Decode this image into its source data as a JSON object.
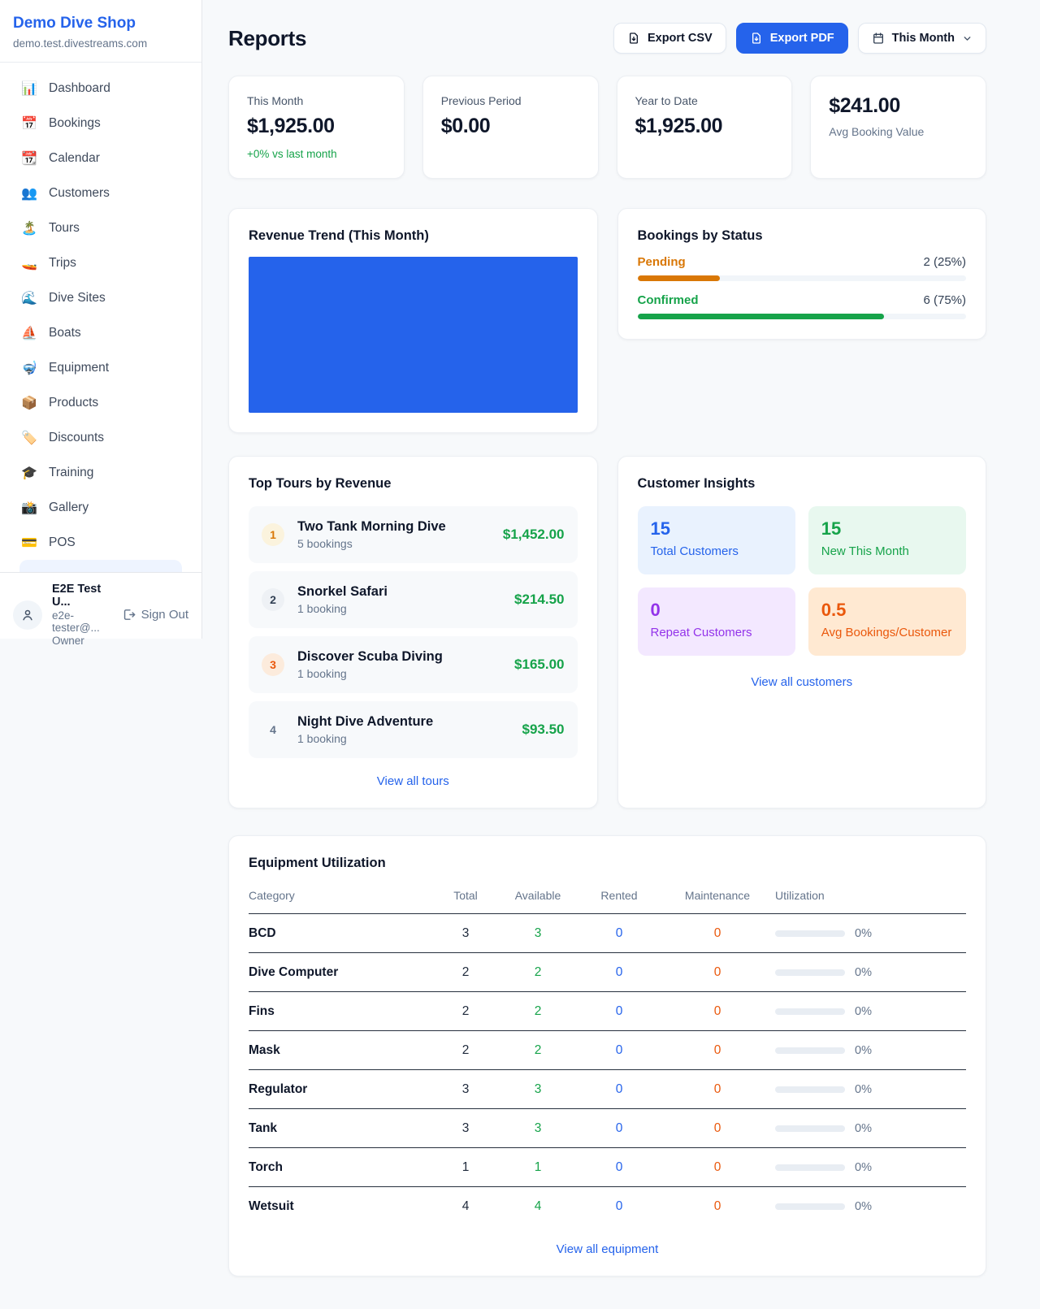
{
  "colors": {
    "accent_blue": "#2563eb",
    "green": "#16a34a",
    "orange_pending": "#d97706",
    "orange_deep": "#ea580c",
    "purple": "#9333ea",
    "page_bg": "#f7f9fb",
    "trend_fill": "#2563eb"
  },
  "sidebar": {
    "brand": "Demo Dive Shop",
    "domain": "demo.test.divestreams.com",
    "items": [
      {
        "icon": "📊",
        "label": "Dashboard"
      },
      {
        "icon": "📅",
        "label": "Bookings"
      },
      {
        "icon": "📆",
        "label": "Calendar"
      },
      {
        "icon": "👥",
        "label": "Customers"
      },
      {
        "icon": "🏝️",
        "label": "Tours"
      },
      {
        "icon": "🚤",
        "label": "Trips"
      },
      {
        "icon": "🌊",
        "label": "Dive Sites"
      },
      {
        "icon": "⛵",
        "label": "Boats"
      },
      {
        "icon": "🤿",
        "label": "Equipment"
      },
      {
        "icon": "📦",
        "label": "Products"
      },
      {
        "icon": "🏷️",
        "label": "Discounts"
      },
      {
        "icon": "🎓",
        "label": "Training"
      },
      {
        "icon": "📸",
        "label": "Gallery"
      },
      {
        "icon": "💳",
        "label": "POS"
      }
    ],
    "user": {
      "name": "E2E Test U...",
      "email": "e2e-tester@...",
      "role": "Owner",
      "sign_out": "Sign Out"
    }
  },
  "header": {
    "title": "Reports",
    "export_csv": "Export CSV",
    "export_pdf": "Export PDF",
    "period": "This Month"
  },
  "stats": {
    "cards": [
      {
        "label": "This Month",
        "value": "$1,925.00",
        "delta": "+0% vs last month"
      },
      {
        "label": "Previous Period",
        "value": "$0.00"
      },
      {
        "label": "Year to Date",
        "value": "$1,925.00"
      },
      {
        "label": "Avg Booking Value",
        "value": "$241.00"
      }
    ]
  },
  "revenue_trend": {
    "title": "Revenue Trend (This Month)",
    "fill_color": "#2563eb"
  },
  "bookings_by_status": {
    "title": "Bookings by Status",
    "rows": [
      {
        "label": "Pending",
        "value": "2 (25%)",
        "percent": 25,
        "color": "#d97706"
      },
      {
        "label": "Confirmed",
        "value": "6 (75%)",
        "percent": 75,
        "color": "#16a34a"
      }
    ]
  },
  "top_tours": {
    "title": "Top Tours by Revenue",
    "items": [
      {
        "rank": "1",
        "name": "Two Tank Morning Dive",
        "bookings": "5 bookings",
        "revenue": "$1,452.00"
      },
      {
        "rank": "2",
        "name": "Snorkel Safari",
        "bookings": "1 booking",
        "revenue": "$214.50"
      },
      {
        "rank": "3",
        "name": "Discover Scuba Diving",
        "bookings": "1 booking",
        "revenue": "$165.00"
      },
      {
        "rank": "4",
        "name": "Night Dive Adventure",
        "bookings": "1 booking",
        "revenue": "$93.50"
      }
    ],
    "view_all": "View all tours"
  },
  "customer_insights": {
    "title": "Customer Insights",
    "tiles": [
      {
        "value": "15",
        "label": "Total Customers"
      },
      {
        "value": "15",
        "label": "New This Month"
      },
      {
        "value": "0",
        "label": "Repeat Customers"
      },
      {
        "value": "0.5",
        "label": "Avg Bookings/Customer"
      }
    ],
    "view_all": "View all customers"
  },
  "equipment": {
    "title": "Equipment Utilization",
    "columns": [
      "Category",
      "Total",
      "Available",
      "Rented",
      "Maintenance",
      "Utilization"
    ],
    "rows": [
      {
        "category": "BCD",
        "total": "3",
        "available": "3",
        "rented": "0",
        "maintenance": "0",
        "utilization": "0%",
        "utilization_pct": 0
      },
      {
        "category": "Dive Computer",
        "total": "2",
        "available": "2",
        "rented": "0",
        "maintenance": "0",
        "utilization": "0%",
        "utilization_pct": 0
      },
      {
        "category": "Fins",
        "total": "2",
        "available": "2",
        "rented": "0",
        "maintenance": "0",
        "utilization": "0%",
        "utilization_pct": 0
      },
      {
        "category": "Mask",
        "total": "2",
        "available": "2",
        "rented": "0",
        "maintenance": "0",
        "utilization": "0%",
        "utilization_pct": 0
      },
      {
        "category": "Regulator",
        "total": "3",
        "available": "3",
        "rented": "0",
        "maintenance": "0",
        "utilization": "0%",
        "utilization_pct": 0
      },
      {
        "category": "Tank",
        "total": "3",
        "available": "3",
        "rented": "0",
        "maintenance": "0",
        "utilization": "0%",
        "utilization_pct": 0
      },
      {
        "category": "Torch",
        "total": "1",
        "available": "1",
        "rented": "0",
        "maintenance": "0",
        "utilization": "0%",
        "utilization_pct": 0
      },
      {
        "category": "Wetsuit",
        "total": "4",
        "available": "4",
        "rented": "0",
        "maintenance": "0",
        "utilization": "0%",
        "utilization_pct": 0
      }
    ],
    "view_all": "View all equipment"
  }
}
